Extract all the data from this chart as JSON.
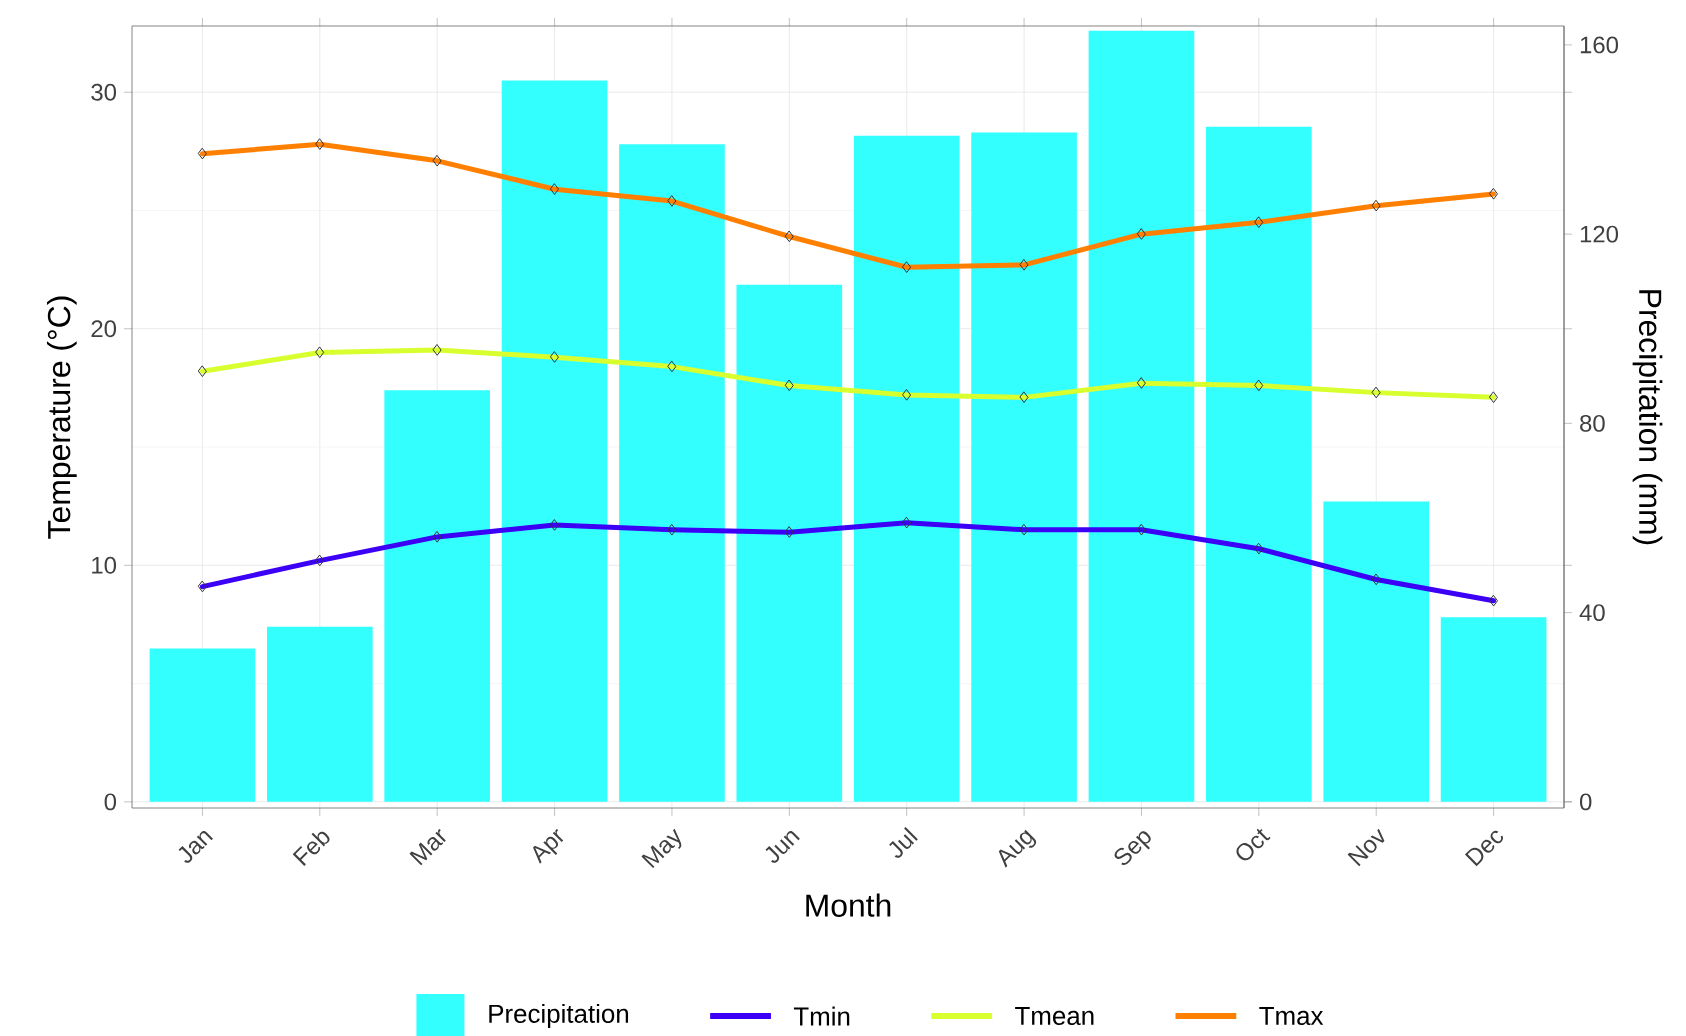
{
  "chart_data": {
    "type": "line",
    "xlabel": "Month",
    "ylabel": "Temperature (°C)",
    "y2label": "Precipitation (mm)",
    "categories": [
      "Jan",
      "Feb",
      "Mar",
      "Apr",
      "May",
      "Jun",
      "Jul",
      "Aug",
      "Sep",
      "Oct",
      "Nov",
      "Dec"
    ],
    "series": [
      {
        "name": "Precipitation",
        "type": "bar",
        "axis": "y2",
        "color": "#33ffff",
        "values": [
          32.4,
          37,
          87,
          152.5,
          139,
          109.3,
          140.8,
          141.5,
          163,
          142.7,
          63.5,
          39
        ]
      },
      {
        "name": "Tmin",
        "color": "#3b00f5",
        "values": [
          9.1,
          10.2,
          11.2,
          11.7,
          11.5,
          11.4,
          11.8,
          11.5,
          11.5,
          10.7,
          9.4,
          8.5
        ]
      },
      {
        "name": "Tmean",
        "color": "#d8ff2e",
        "values": [
          18.2,
          19.0,
          19.1,
          18.8,
          18.4,
          17.6,
          17.2,
          17.1,
          17.7,
          17.6,
          17.3,
          17.1
        ]
      },
      {
        "name": "Tmax",
        "color": "#ff7f00",
        "values": [
          27.4,
          27.8,
          27.1,
          25.9,
          25.4,
          23.9,
          22.6,
          22.7,
          24.0,
          24.5,
          25.2,
          25.7
        ]
      }
    ],
    "ylim": [
      -0.26,
      32.8
    ],
    "yticks": [
      0,
      10,
      20,
      30
    ],
    "y2lim": [
      -1.3,
      164
    ],
    "y2ticks": [
      0,
      40,
      80,
      120,
      160
    ],
    "grid": true,
    "legend": "bottom",
    "marker": "diamond",
    "line_style": "solid"
  }
}
